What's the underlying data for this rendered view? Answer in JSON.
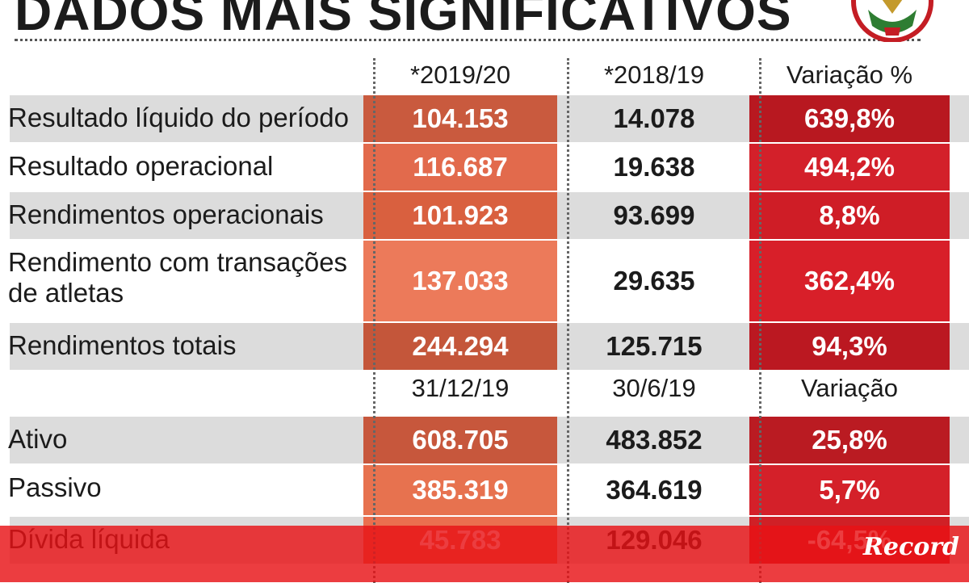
{
  "title": "DADOS MAIS SIGNIFICATIVOS",
  "colors": {
    "col1_base": "#d2573a",
    "col3_base": "#c41d24",
    "shade": "#dcdcdc",
    "bottom_bar": "#e81216"
  },
  "chart_data": {
    "type": "table",
    "sections": [
      {
        "headers": [
          "*2019/20",
          "*2018/19",
          "Variação %"
        ],
        "rows": [
          {
            "label": "Resultado líquido do período",
            "c1": "104.153",
            "c2": "14.078",
            "c3": "639,8%"
          },
          {
            "label": "Resultado operacional",
            "c1": "116.687",
            "c2": "19.638",
            "c3": "494,2%"
          },
          {
            "label": "Rendimentos operacionais",
            "c1": "101.923",
            "c2": "93.699",
            "c3": "8,8%"
          },
          {
            "label": "Rendimento com transações de atletas",
            "c1": "137.033",
            "c2": "29.635",
            "c3": "362,4%"
          },
          {
            "label": "Rendimentos totais",
            "c1": "244.294",
            "c2": "125.715",
            "c3": "94,3%"
          }
        ]
      },
      {
        "headers": [
          "31/12/19",
          "30/6/19",
          "Variação"
        ],
        "rows": [
          {
            "label": "Ativo",
            "c1": "608.705",
            "c2": "483.852",
            "c3": "25,8%"
          },
          {
            "label": "Passivo",
            "c1": "385.319",
            "c2": "364.619",
            "c3": "5,7%"
          },
          {
            "label": "Dívida líquida",
            "c1": "45.783",
            "c2": "129.046",
            "c3": "-64,5%"
          }
        ]
      }
    ]
  },
  "watermark": "Record"
}
